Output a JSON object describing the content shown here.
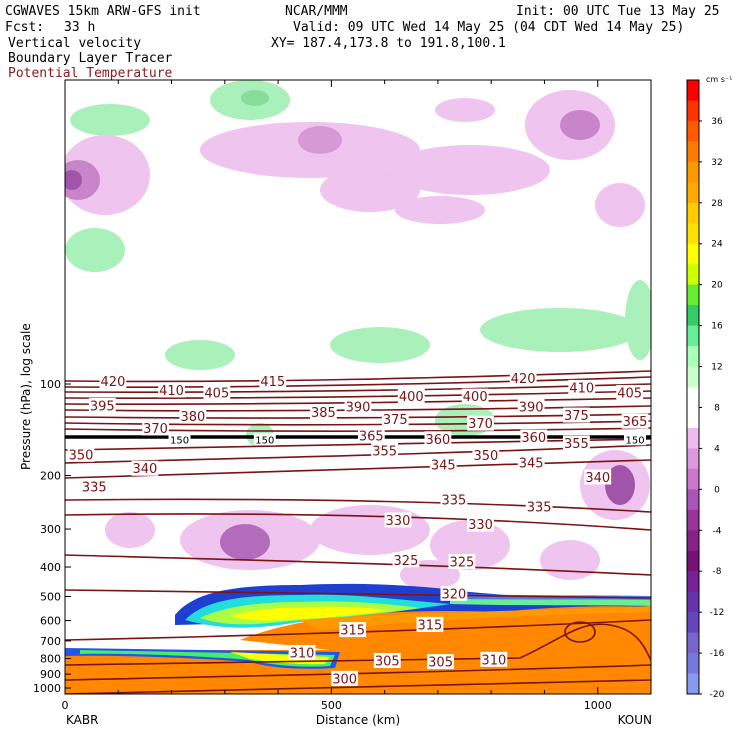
{
  "header": {
    "model": "CGWAVES 15km ARW-GFS init",
    "org": "NCAR/MMM",
    "init": "Init: 00 UTC Tue 13 May 25",
    "fcst_label": "Fcst:",
    "fcst_value": "33 h",
    "valid": "Valid: 09 UTC Wed 14 May 25 (04 CDT Wed 14 May 25)",
    "field1": "Vertical velocity",
    "xy": "XY= 187.4,173.8 to 191.8,100.1",
    "field2": "Boundary Layer Tracer",
    "field3": "Potential Temperature"
  },
  "chart_data": {
    "type": "cross-section",
    "ylabel": "Pressure (hPa), log scale",
    "xlabel": "Distance (km)",
    "xlim": [
      0,
      1100
    ],
    "x_ticks": [
      {
        "value": 0,
        "label": "0"
      },
      {
        "value": 500,
        "label": "500"
      },
      {
        "value": 1000,
        "label": "1000"
      }
    ],
    "y_ticks": [
      {
        "value": 100,
        "label": "100"
      },
      {
        "value": 200,
        "label": "200"
      },
      {
        "value": 300,
        "label": "300"
      },
      {
        "value": 400,
        "label": "400"
      },
      {
        "value": 500,
        "label": "500"
      },
      {
        "value": 600,
        "label": "600"
      },
      {
        "value": 700,
        "label": "700"
      },
      {
        "value": 800,
        "label": "800"
      },
      {
        "value": 900,
        "label": "900"
      },
      {
        "value": 1000,
        "label": "1000"
      }
    ],
    "endpoints": {
      "left": "KABR",
      "right": "KOUN"
    },
    "colorbar": {
      "unit": "cm s⁻¹",
      "levels": [
        {
          "value": 36,
          "label": "36"
        },
        {
          "value": 32,
          "label": "32"
        },
        {
          "value": 28,
          "label": "28"
        },
        {
          "value": 24,
          "label": "24"
        },
        {
          "value": 20,
          "label": "20"
        },
        {
          "value": 16,
          "label": "16"
        },
        {
          "value": 12,
          "label": "12"
        },
        {
          "value": 8,
          "label": "8"
        },
        {
          "value": 4,
          "label": "4"
        },
        {
          "value": 0,
          "label": "0"
        },
        {
          "value": -4,
          "label": "-4"
        },
        {
          "value": -8,
          "label": "-8"
        },
        {
          "value": -12,
          "label": "-12"
        },
        {
          "value": -16,
          "label": "-16"
        },
        {
          "value": -20,
          "label": "-20"
        }
      ],
      "colors": [
        "#ff0000",
        "#ff3300",
        "#ff5a00",
        "#ff7a00",
        "#ff9900",
        "#ffaa00",
        "#ffcc00",
        "#ffe000",
        "#ffff00",
        "#ccff00",
        "#66ee33",
        "#33cc66",
        "#66ee99",
        "#aaffbb",
        "#ccffcc",
        "#ffffff",
        "#ffffff",
        "#eebbee",
        "#dd99dd",
        "#cc77cc",
        "#aa55bb",
        "#993399",
        "#882288",
        "#771177",
        "#772299",
        "#6633aa",
        "#6644bb",
        "#7766cc",
        "#7777dd",
        "#8899ee"
      ]
    },
    "theta_labels": [
      {
        "x": 90,
        "p": 98,
        "label": "420"
      },
      {
        "x": 390,
        "p": 98,
        "label": "415"
      },
      {
        "x": 860,
        "p": 96,
        "label": "420"
      },
      {
        "x": 200,
        "p": 105,
        "label": "410"
      },
      {
        "x": 285,
        "p": 107,
        "label": "405"
      },
      {
        "x": 650,
        "p": 110,
        "label": "400"
      },
      {
        "x": 770,
        "p": 110,
        "label": "400"
      },
      {
        "x": 970,
        "p": 103,
        "label": "410"
      },
      {
        "x": 1060,
        "p": 107,
        "label": "405"
      },
      {
        "x": 70,
        "p": 118,
        "label": "395"
      },
      {
        "x": 550,
        "p": 119,
        "label": "390"
      },
      {
        "x": 875,
        "p": 119,
        "label": "390"
      },
      {
        "x": 485,
        "p": 124,
        "label": "385"
      },
      {
        "x": 240,
        "p": 128,
        "label": "380"
      },
      {
        "x": 620,
        "p": 131,
        "label": "375"
      },
      {
        "x": 960,
        "p": 127,
        "label": "375"
      },
      {
        "x": 170,
        "p": 140,
        "label": "370"
      },
      {
        "x": 780,
        "p": 135,
        "label": "370"
      },
      {
        "x": 1070,
        "p": 133,
        "label": "365"
      },
      {
        "x": 575,
        "p": 148,
        "label": "365"
      },
      {
        "x": 700,
        "p": 152,
        "label": "360"
      },
      {
        "x": 880,
        "p": 150,
        "label": "360"
      },
      {
        "x": 600,
        "p": 166,
        "label": "355"
      },
      {
        "x": 960,
        "p": 157,
        "label": "355"
      },
      {
        "x": 30,
        "p": 171,
        "label": "350"
      },
      {
        "x": 790,
        "p": 172,
        "label": "350"
      },
      {
        "x": 710,
        "p": 185,
        "label": "345"
      },
      {
        "x": 875,
        "p": 182,
        "label": "345"
      },
      {
        "x": 150,
        "p": 190,
        "label": "340"
      },
      {
        "x": 1000,
        "p": 203,
        "label": "340"
      },
      {
        "x": 55,
        "p": 218,
        "label": "335"
      },
      {
        "x": 730,
        "p": 241,
        "label": "335"
      },
      {
        "x": 890,
        "p": 254,
        "label": "335"
      },
      {
        "x": 625,
        "p": 281,
        "label": "330"
      },
      {
        "x": 780,
        "p": 290,
        "label": "330"
      },
      {
        "x": 640,
        "p": 380,
        "label": "325"
      },
      {
        "x": 745,
        "p": 385,
        "label": "325"
      },
      {
        "x": 730,
        "p": 490,
        "label": "320"
      },
      {
        "x": 540,
        "p": 645,
        "label": "315"
      },
      {
        "x": 685,
        "p": 620,
        "label": "315"
      },
      {
        "x": 445,
        "p": 767,
        "label": "310"
      },
      {
        "x": 805,
        "p": 808,
        "label": "310"
      },
      {
        "x": 605,
        "p": 815,
        "label": "305"
      },
      {
        "x": 705,
        "p": 822,
        "label": "305"
      },
      {
        "x": 525,
        "p": 933,
        "label": "300"
      }
    ],
    "tropopause_labels": [
      {
        "x": 215,
        "p": 152,
        "label": "150"
      },
      {
        "x": 375,
        "p": 152,
        "label": "150"
      },
      {
        "x": 1070,
        "p": 152,
        "label": "150"
      }
    ]
  }
}
